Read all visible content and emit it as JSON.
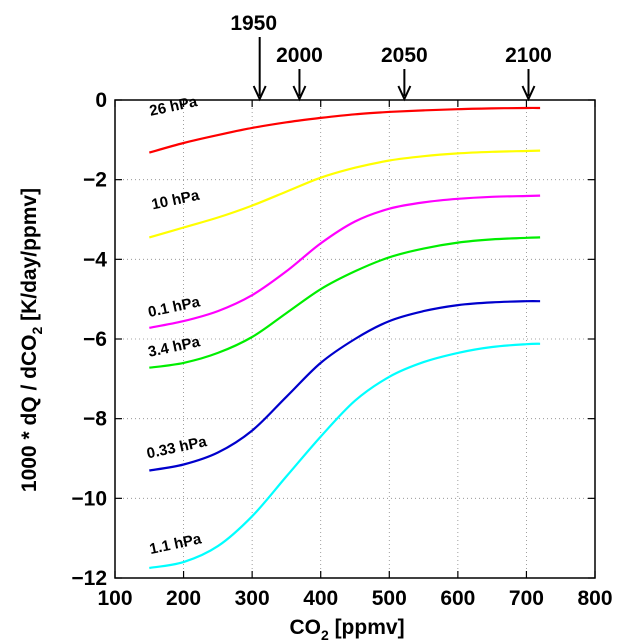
{
  "chart_data": {
    "type": "line",
    "title": "",
    "xlabel": "CO",
    "xlabel_sub": "2",
    "xlabel_suffix": " [ppmv]",
    "ylabel": "1000 * dQ / dCO",
    "ylabel_sub": "2",
    "ylabel_suffix": " [K/day/ppmv]",
    "xlim": [
      100,
      800
    ],
    "ylim": [
      -12,
      0
    ],
    "grid": true,
    "x_ticks": [
      100,
      200,
      300,
      400,
      500,
      600,
      700,
      800
    ],
    "y_ticks": [
      0,
      -2,
      -4,
      -6,
      -8,
      -10,
      -12
    ],
    "x_tick_labels": [
      "100",
      "200",
      "300",
      "400",
      "500",
      "600",
      "700",
      "800"
    ],
    "y_tick_labels": [
      "0",
      "−2",
      "−4",
      "−6",
      "−8",
      "−10",
      "−12"
    ],
    "top_markers": [
      {
        "label": "1950",
        "x": 311
      },
      {
        "label": "2000",
        "x": 369
      },
      {
        "label": "2050",
        "x": 522
      },
      {
        "label": "2100",
        "x": 703
      }
    ],
    "x": [
      150,
      200,
      250,
      300,
      350,
      400,
      450,
      500,
      550,
      600,
      650,
      700,
      720
    ],
    "series": [
      {
        "name": "26 hPa",
        "color": "#ff0000",
        "label_x": 152,
        "label_y": -0.4,
        "values": [
          -1.32,
          -1.08,
          -0.88,
          -0.7,
          -0.56,
          -0.45,
          -0.36,
          -0.3,
          -0.26,
          -0.23,
          -0.21,
          -0.2,
          -0.2
        ]
      },
      {
        "name": "10 hPa",
        "color": "#ffff00",
        "label_x": 155,
        "label_y": -2.75,
        "values": [
          -3.45,
          -3.2,
          -2.95,
          -2.65,
          -2.3,
          -1.95,
          -1.7,
          -1.52,
          -1.41,
          -1.34,
          -1.3,
          -1.28,
          -1.27
        ]
      },
      {
        "name": "0.1 hPa",
        "color": "#ff00ff",
        "label_x": 150,
        "label_y": -5.45,
        "values": [
          -5.72,
          -5.55,
          -5.3,
          -4.9,
          -4.3,
          -3.6,
          -3.05,
          -2.73,
          -2.57,
          -2.48,
          -2.43,
          -2.41,
          -2.4
        ]
      },
      {
        "name": "3.4 hPa",
        "color": "#00ee00",
        "label_x": 150,
        "label_y": -6.45,
        "values": [
          -6.72,
          -6.6,
          -6.35,
          -5.95,
          -5.35,
          -4.75,
          -4.3,
          -3.95,
          -3.73,
          -3.58,
          -3.5,
          -3.46,
          -3.45
        ]
      },
      {
        "name": "0.33 hPa",
        "color": "#0000cc",
        "label_x": 148,
        "label_y": -9.0,
        "values": [
          -9.3,
          -9.15,
          -8.85,
          -8.3,
          -7.45,
          -6.6,
          -6.0,
          -5.55,
          -5.3,
          -5.15,
          -5.08,
          -5.05,
          -5.05
        ]
      },
      {
        "name": "1.1 hPa",
        "color": "#00ffff",
        "label_x": 152,
        "label_y": -11.4,
        "values": [
          -11.75,
          -11.6,
          -11.2,
          -10.45,
          -9.45,
          -8.45,
          -7.55,
          -6.95,
          -6.58,
          -6.35,
          -6.2,
          -6.13,
          -6.12
        ]
      }
    ]
  }
}
